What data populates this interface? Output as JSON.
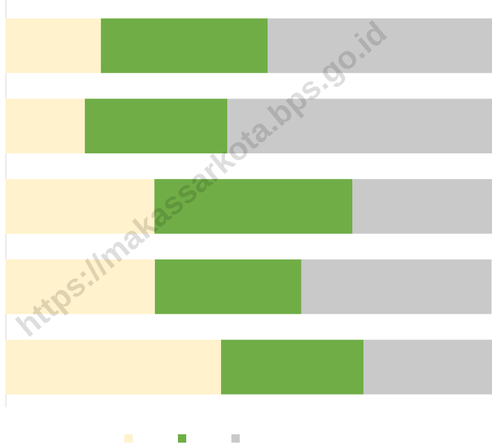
{
  "chart_data": {
    "type": "stacked-barh",
    "categories": [
      null,
      null,
      null,
      null,
      null
    ],
    "series": [
      {
        "color": "#fff2cc",
        "values": [
          19.6,
          16.3,
          30.6,
          30.7,
          44.3
        ]
      },
      {
        "color": "#70ad47",
        "values": [
          34.3,
          29.3,
          40.7,
          30.1,
          29.3
        ]
      },
      {
        "color": "#c9c9c9",
        "values": [
          46.1,
          54.4,
          28.7,
          39.1,
          26.4
        ]
      }
    ],
    "xlim": [
      0,
      100
    ],
    "watermark": "https://makassarkota.bps.go.id"
  }
}
